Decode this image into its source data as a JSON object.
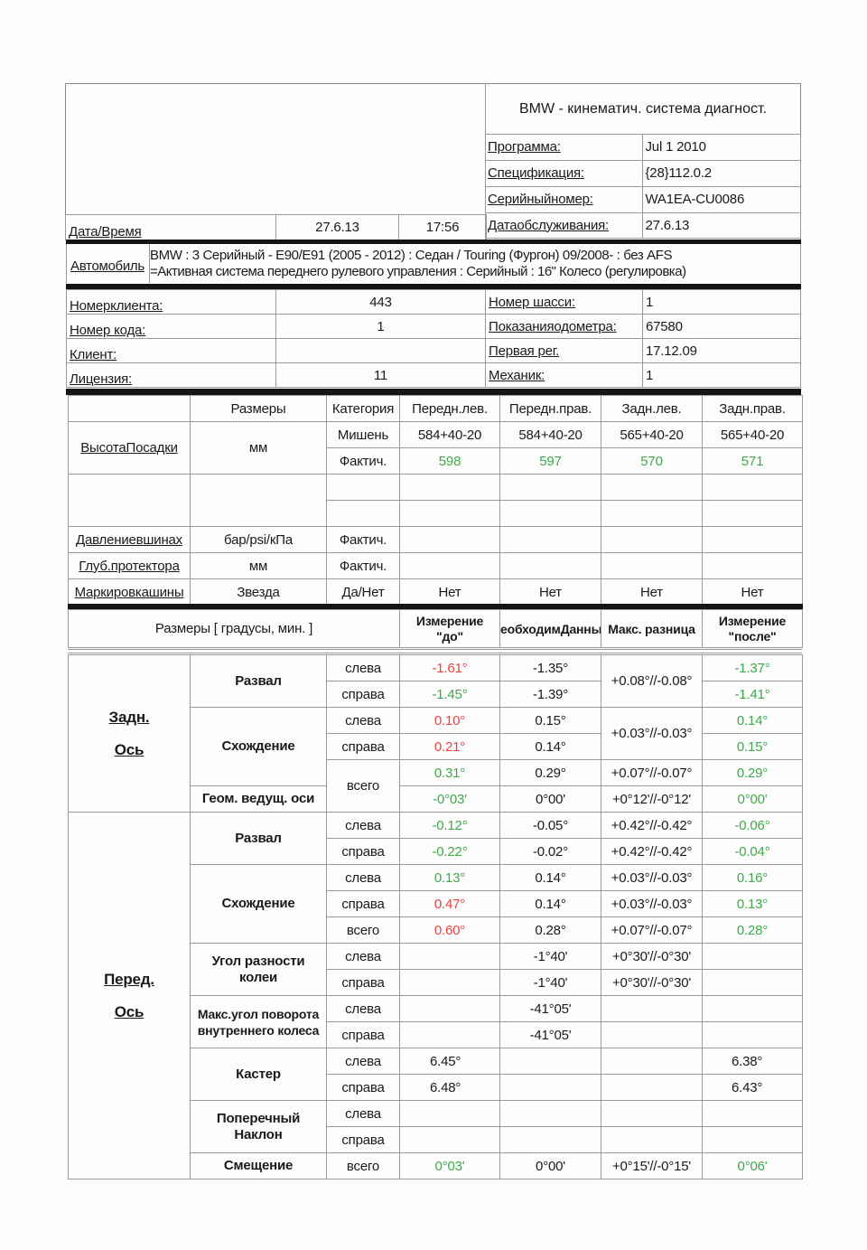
{
  "header": {
    "system_title": "BMW - кинематич. система диагност.",
    "info": [
      {
        "label": "Программа:",
        "value": "Jul  1 2010"
      },
      {
        "label": "Спецификация:",
        "value": "{28}112.0.2"
      },
      {
        "label": "Серийныйномер:",
        "value": "WA1EA-CU0086"
      },
      {
        "label": "Датаобслуживания:",
        "value": "27.6.13"
      }
    ],
    "datetime_label": "Дата/Время",
    "date": "27.6.13",
    "time": "17:56"
  },
  "vehicle": {
    "label": "Автомобиль",
    "line1": "BMW : 3 Серийный - E90/E91 (2005 - 2012) : Седан / Touring (Фургон) 09/2008- : без AFS",
    "line2": "=Активная система переднего рулевого управления : Серийный : 16\" Колесо (регулировка)"
  },
  "client": {
    "rows": [
      {
        "l_label": "Номерклиента:",
        "l_value": "443",
        "r_label": "Номер шасси:",
        "r_value": "1"
      },
      {
        "l_label": "Номер кода:",
        "l_value": "1",
        "r_label": "Показанияодометра:",
        "r_value": "67580"
      },
      {
        "l_label": "Клиент:",
        "l_value": "",
        "r_label": "Первая рег.",
        "r_value": "17.12.09"
      },
      {
        "l_label": "Лицензия:",
        "l_value": "11",
        "r_label": "Механик:",
        "r_value": "1"
      }
    ]
  },
  "tyres": {
    "headers": [
      "",
      "Размеры",
      "Категория",
      "Передн.лев.",
      "Передн.прав.",
      "Задн.лев.",
      "Задн.прав."
    ],
    "ride_height": {
      "label": "ВысотаПосадки",
      "unit": "мм",
      "target_label": "Мишень",
      "target": [
        "584+40-20",
        "584+40-20",
        "565+40-20",
        "565+40-20"
      ],
      "actual_label": "Фактич.",
      "actual": [
        "598",
        "597",
        "570",
        "571"
      ],
      "actual_status": "green"
    },
    "pressure": {
      "label": "Давлениевшинах",
      "unit": "бар/psi/кПа",
      "category": "Фактич.",
      "values": [
        "",
        "",
        "",
        ""
      ]
    },
    "tread": {
      "label": "Глуб.протектора",
      "unit": "мм",
      "category": "Фактич.",
      "values": [
        "",
        "",
        "",
        ""
      ]
    },
    "marking": {
      "label": "Маркировкашины",
      "unit": "Звезда",
      "category": "Да/Нет",
      "values": [
        "Нет",
        "Нет",
        "Нет",
        "Нет"
      ]
    }
  },
  "alignment": {
    "headers": {
      "dims": "Размеры [ градусы, мин. ]",
      "before": "Измерение \"до\"",
      "spec": "еобходимДанны",
      "tol": "Макс. разница",
      "after": "Измерение \"после\""
    },
    "groups": [
      {
        "line1": "Задн.",
        "line2": "Ось"
      },
      {
        "line1": "Перед.",
        "line2": "Ось"
      }
    ],
    "status_colors": {
      "red": "#e5453d",
      "green": "#3fa84a"
    },
    "rows": [
      {
        "param": "Развал",
        "side": "слева",
        "before": "-1.61°",
        "before_status": "red",
        "spec": "-1.35°",
        "tol": "+0.08°//-0.08°",
        "after": "-1.37°",
        "after_status": "green"
      },
      {
        "param": "",
        "side": "справа",
        "before": "-1.45°",
        "before_status": "green",
        "spec": "-1.39°",
        "tol": "",
        "after": "-1.41°",
        "after_status": "green"
      },
      {
        "param": "Схождение",
        "side": "слева",
        "before": "0.10°",
        "before_status": "red",
        "spec": "0.15°",
        "tol": "+0.03°//-0.03°",
        "after": "0.14°",
        "after_status": "green"
      },
      {
        "param": "",
        "side": "справа",
        "before": "0.21°",
        "before_status": "red",
        "spec": "0.14°",
        "tol": "",
        "after": "0.15°",
        "after_status": "green"
      },
      {
        "param": "",
        "side": "всего",
        "before": "0.31°",
        "before_status": "green",
        "spec": "0.29°",
        "tol": "+0.07°//-0.07°",
        "after": "0.29°",
        "after_status": "green"
      },
      {
        "param": "Геом. ведущ. оси",
        "side": "",
        "before": "-0°03'",
        "before_status": "green",
        "spec": "0°00'",
        "tol": "+0°12'//-0°12'",
        "after": "0°00'",
        "after_status": "green"
      },
      {
        "param": "Развал",
        "side": "слева",
        "before": "-0.12°",
        "before_status": "green",
        "spec": "-0.05°",
        "tol": "+0.42°//-0.42°",
        "after": "-0.06°",
        "after_status": "green"
      },
      {
        "param": "",
        "side": "справа",
        "before": "-0.22°",
        "before_status": "green",
        "spec": "-0.02°",
        "tol": "+0.42°//-0.42°",
        "after": "-0.04°",
        "after_status": "green"
      },
      {
        "param": "Схождение",
        "side": "слева",
        "before": "0.13°",
        "before_status": "green",
        "spec": "0.14°",
        "tol": "+0.03°//-0.03°",
        "after": "0.16°",
        "after_status": "green"
      },
      {
        "param": "",
        "side": "справа",
        "before": "0.47°",
        "before_status": "red",
        "spec": "0.14°",
        "tol": "+0.03°//-0.03°",
        "after": "0.13°",
        "after_status": "green"
      },
      {
        "param": "",
        "side": "всего",
        "before": "0.60°",
        "before_status": "red",
        "spec": "0.28°",
        "tol": "+0.07°//-0.07°",
        "after": "0.28°",
        "after_status": "green"
      },
      {
        "param": "Угол разности колеи",
        "side": "слева",
        "before": "",
        "before_status": "black",
        "spec": "-1°40'",
        "tol": "+0°30'//-0°30'",
        "after": "",
        "after_status": "black"
      },
      {
        "param": "",
        "side": "справа",
        "before": "",
        "before_status": "black",
        "spec": "-1°40'",
        "tol": "+0°30'//-0°30'",
        "after": "",
        "after_status": "black"
      },
      {
        "param": "Макс.угол поворота внутреннего колеса",
        "side": "слева",
        "before": "",
        "before_status": "black",
        "spec": "-41°05'",
        "tol": "",
        "after": "",
        "after_status": "black"
      },
      {
        "param": "",
        "side": "справа",
        "before": "",
        "before_status": "black",
        "spec": "-41°05'",
        "tol": "",
        "after": "",
        "after_status": "black"
      },
      {
        "param": "Кастер",
        "side": "слева",
        "before": "6.45°",
        "before_status": "black",
        "spec": "",
        "tol": "",
        "after": "6.38°",
        "after_status": "black"
      },
      {
        "param": "",
        "side": "справа",
        "before": "6.48°",
        "before_status": "black",
        "spec": "",
        "tol": "",
        "after": "6.43°",
        "after_status": "black"
      },
      {
        "param": "Поперечный Наклон",
        "side": "слева",
        "before": "",
        "before_status": "black",
        "spec": "",
        "tol": "",
        "after": "",
        "after_status": "black"
      },
      {
        "param": "",
        "side": "справа",
        "before": "",
        "before_status": "black",
        "spec": "",
        "tol": "",
        "after": "",
        "after_status": "black"
      },
      {
        "param": "Смещение",
        "side": "всего",
        "before": "0°03'",
        "before_status": "green",
        "spec": "0°00'",
        "tol": "+0°15'//-0°15'",
        "after": "0°06'",
        "after_status": "green"
      }
    ]
  }
}
